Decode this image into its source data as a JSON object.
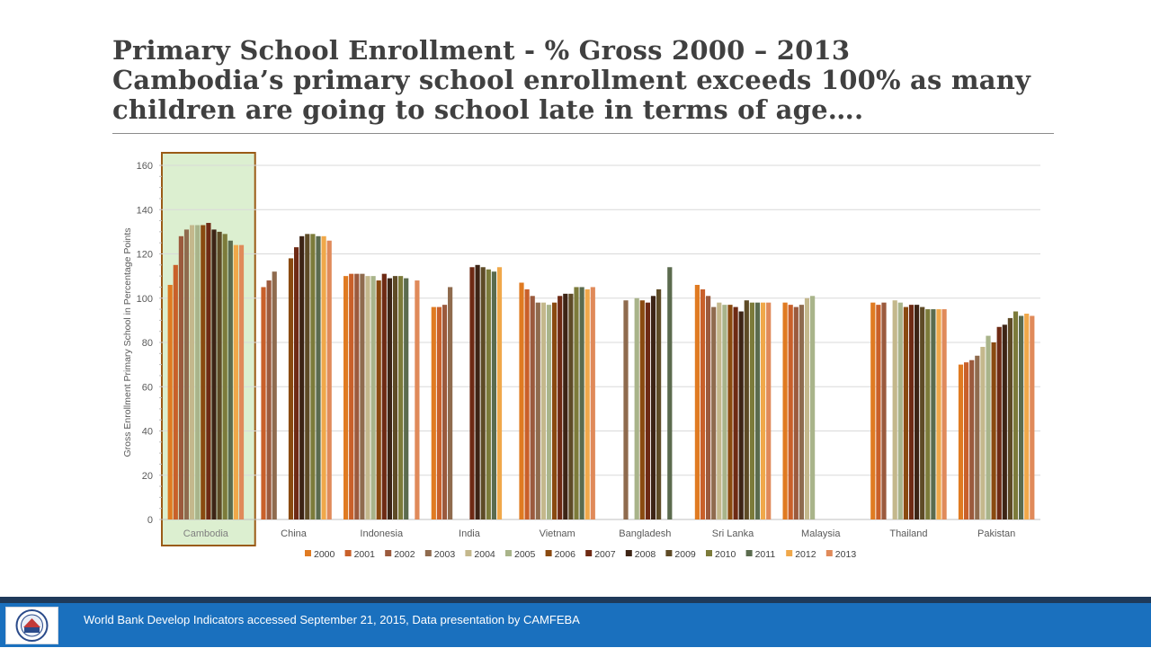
{
  "slide": {
    "title_line1": "Primary School Enrollment - % Gross 2000 – 2013",
    "title_line2": "Cambodia’s primary school enrollment exceeds 100% as many",
    "title_line3": "children are going to school late in terms of age…."
  },
  "footer": {
    "source_text": "World Bank Develop Indicators accessed September 21, 2015,  Data presentation by CAMFEBA"
  },
  "colors": {
    "highlight_fill": "#dcefd0",
    "highlight_border": "#9a5b16",
    "series": [
      "#e07b22",
      "#c9602a",
      "#9b5a3d",
      "#8f6b4e",
      "#c4b88c",
      "#a9b48a",
      "#8a4a10",
      "#6e2a14",
      "#3d2415",
      "#5e4b26",
      "#7c7b3a",
      "#5b6b4e",
      "#f0a84a",
      "#e08a5a"
    ]
  },
  "chart_data": {
    "type": "bar",
    "title": "",
    "xlabel": "",
    "ylabel": "Gross Enrollment Primary School in Percentage Points",
    "ylim": [
      0,
      160
    ],
    "yticks": [
      "0",
      "20",
      "40",
      "60",
      "80",
      "100",
      "120",
      "140",
      "160"
    ],
    "grid": true,
    "legend_position": "bottom",
    "highlighted_category": "Cambodia",
    "categories": [
      "Cambodia",
      "China",
      "Indonesia",
      "India",
      "Vietnam",
      "Bangladesh",
      "Sri Lanka",
      "Malaysia",
      "Thailand",
      "Pakistan"
    ],
    "series": [
      {
        "name": "2000",
        "values": [
          106,
          null,
          110,
          96,
          107,
          null,
          106,
          98,
          98,
          70
        ]
      },
      {
        "name": "2001",
        "values": [
          115,
          105,
          111,
          96,
          104,
          null,
          104,
          97,
          97,
          71
        ]
      },
      {
        "name": "2002",
        "values": [
          128,
          108,
          111,
          97,
          101,
          null,
          101,
          96,
          98,
          72
        ]
      },
      {
        "name": "2003",
        "values": [
          131,
          112,
          111,
          105,
          98,
          99,
          96,
          97,
          null,
          74
        ]
      },
      {
        "name": "2004",
        "values": [
          133,
          null,
          110,
          null,
          98,
          null,
          98,
          100,
          99,
          78
        ]
      },
      {
        "name": "2005",
        "values": [
          133,
          null,
          110,
          null,
          97,
          100,
          97,
          101,
          98,
          83
        ]
      },
      {
        "name": "2006",
        "values": [
          133,
          118,
          108,
          null,
          98,
          99,
          97,
          null,
          96,
          80
        ]
      },
      {
        "name": "2007",
        "values": [
          134,
          123,
          111,
          114,
          101,
          98,
          96,
          null,
          97,
          87
        ]
      },
      {
        "name": "2008",
        "values": [
          131,
          128,
          109,
          115,
          102,
          101,
          94,
          null,
          97,
          88
        ]
      },
      {
        "name": "2009",
        "values": [
          130,
          129,
          110,
          114,
          102,
          104,
          99,
          null,
          96,
          91
        ]
      },
      {
        "name": "2010",
        "values": [
          129,
          129,
          110,
          113,
          105,
          null,
          98,
          null,
          95,
          94
        ]
      },
      {
        "name": "2011",
        "values": [
          126,
          128,
          109,
          112,
          105,
          114,
          98,
          null,
          95,
          92
        ]
      },
      {
        "name": "2012",
        "values": [
          124,
          128,
          null,
          114,
          104,
          null,
          98,
          null,
          95,
          93
        ]
      },
      {
        "name": "2013",
        "values": [
          124,
          126,
          108,
          null,
          105,
          null,
          98,
          null,
          95,
          92
        ]
      }
    ]
  }
}
